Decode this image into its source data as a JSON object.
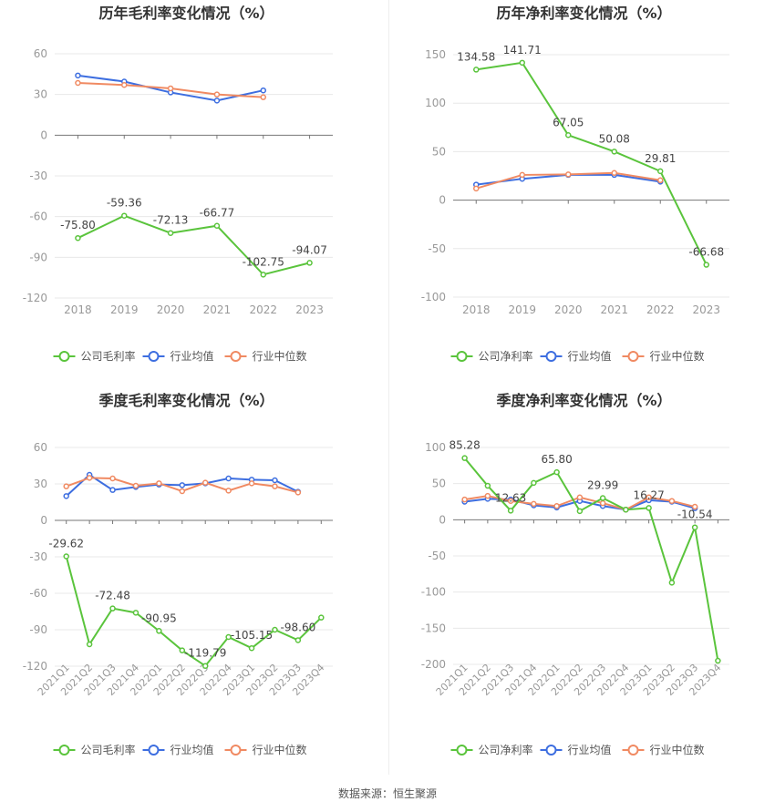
{
  "colors": {
    "company": "#5ac43c",
    "avg": "#3d6ee0",
    "median": "#f08a62",
    "grid": "#e8e8e8",
    "axis": "#999999",
    "text": "#333333"
  },
  "footer": {
    "source": "数据来源：恒生聚源"
  },
  "chart_data": [
    {
      "type": "line",
      "title": "历年毛利率变化情况（%）",
      "categories": [
        "2018",
        "2019",
        "2020",
        "2021",
        "2022",
        "2023"
      ],
      "ylim": [
        -120,
        60
      ],
      "yticks": [
        60,
        30,
        0,
        -30,
        -60,
        -90,
        -120
      ],
      "series": [
        {
          "name": "公司毛利率",
          "key": "company",
          "values": [
            -75.8,
            -59.36,
            -72.13,
            -66.77,
            -102.75,
            -94.07
          ],
          "labels": [
            "-75.80",
            "-59.36",
            "-72.13",
            "-66.77",
            "-102.75",
            "-94.07"
          ]
        },
        {
          "name": "行业均值",
          "key": "avg",
          "values": [
            44,
            39.5,
            31.5,
            25.5,
            33,
            null
          ]
        },
        {
          "name": "行业中位数",
          "key": "median",
          "values": [
            38.5,
            37,
            34.5,
            30,
            28,
            null
          ]
        }
      ],
      "legend": "bottom"
    },
    {
      "type": "line",
      "title": "历年净利率变化情况（%）",
      "categories": [
        "2018",
        "2019",
        "2020",
        "2021",
        "2022",
        "2023"
      ],
      "ylim": [
        -100,
        150
      ],
      "yticks": [
        150,
        100,
        50,
        0,
        -50,
        -100
      ],
      "series": [
        {
          "name": "公司净利率",
          "key": "company",
          "values": [
            134.58,
            141.71,
            67.05,
            50.08,
            29.81,
            -66.68
          ],
          "labels": [
            "134.58",
            "141.71",
            "67.05",
            "50.08",
            "29.81",
            "-66.68"
          ]
        },
        {
          "name": "行业均值",
          "key": "avg",
          "values": [
            16,
            22,
            26,
            26,
            19,
            null
          ]
        },
        {
          "name": "行业中位数",
          "key": "median",
          "values": [
            12,
            26,
            26.5,
            28,
            20.5,
            null
          ]
        }
      ],
      "legend": "bottom"
    },
    {
      "type": "line",
      "title": "季度毛利率变化情况（%）",
      "categories": [
        "2021Q1",
        "2021Q2",
        "2021Q3",
        "2021Q4",
        "2022Q1",
        "2022Q2",
        "2022Q3",
        "2022Q4",
        "2023Q1",
        "2023Q2",
        "2023Q3",
        "2023Q4"
      ],
      "ylim": [
        -120,
        60
      ],
      "yticks": [
        60,
        30,
        0,
        -30,
        -60,
        -90,
        -120
      ],
      "series": [
        {
          "name": "公司毛利率",
          "key": "company",
          "values": [
            -29.62,
            -102,
            -72.48,
            -76,
            -90.95,
            -107,
            -119.79,
            -96,
            -105.15,
            -90,
            -98.6,
            -80
          ],
          "labels": [
            "-29.62",
            "",
            "-72.48",
            "",
            "-90.95",
            "",
            "-119.79",
            "",
            "-105.15",
            "",
            "-98.60",
            ""
          ]
        },
        {
          "name": "行业均值",
          "key": "avg",
          "values": [
            20,
            37.5,
            25,
            27.5,
            29.5,
            29,
            30.5,
            34.5,
            33.5,
            33,
            23.5,
            null
          ]
        },
        {
          "name": "行业中位数",
          "key": "median",
          "values": [
            28,
            35,
            34.5,
            28.5,
            30.5,
            24,
            31,
            24.5,
            30.5,
            28,
            23,
            null
          ]
        }
      ],
      "legend": "bottom"
    },
    {
      "type": "line",
      "title": "季度净利率变化情况（%）",
      "categories": [
        "2021Q1",
        "2021Q2",
        "2021Q3",
        "2021Q4",
        "2022Q1",
        "2022Q2",
        "2022Q3",
        "2022Q4",
        "2023Q1",
        "2023Q2",
        "2023Q3",
        "2023Q4"
      ],
      "ylim": [
        -200,
        100
      ],
      "yticks": [
        100,
        50,
        0,
        -50,
        -100,
        -150,
        -200
      ],
      "series": [
        {
          "name": "公司净利率",
          "key": "company",
          "values": [
            85.28,
            47,
            12.63,
            51,
            65.8,
            12,
            29.99,
            14,
            16.27,
            -87,
            -10.54,
            -195
          ],
          "labels": [
            "85.28",
            "",
            "12.63",
            "",
            "65.80",
            "",
            "29.99",
            "",
            "16.27",
            "",
            "-10.54",
            ""
          ]
        },
        {
          "name": "行业均值",
          "key": "avg",
          "values": [
            25,
            29,
            28,
            20,
            17,
            26,
            19,
            14,
            27,
            25,
            16,
            null
          ]
        },
        {
          "name": "行业中位数",
          "key": "median",
          "values": [
            28,
            33,
            26,
            22,
            19,
            31,
            23,
            14,
            31,
            26,
            18,
            null
          ]
        }
      ],
      "legend": "bottom"
    }
  ]
}
